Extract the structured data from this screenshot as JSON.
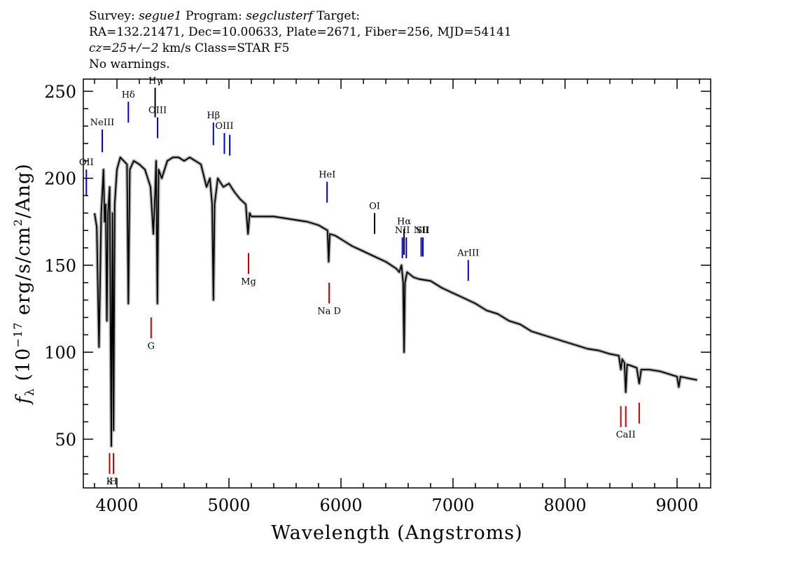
{
  "header": {
    "line1_a": "Survey: ",
    "line1_survey": "segue1",
    "line1_b": " Program: ",
    "line1_program": "segclusterf",
    "line1_c": " Target:",
    "line2": "RA=132.21471, Dec=10.00633, Plate=2671, Fiber=256, MJD=54141",
    "line3_cz": "cz=25+/−2",
    "line3_rest": " km/s Class=STAR F5",
    "line4": "No warnings."
  },
  "chart_data": {
    "type": "line",
    "xlabel": "Wavelength (Angstroms)",
    "ylabel_parts": {
      "f": "f",
      "sub": "λ",
      "a": " (10",
      "exp1": "−17",
      "b": " erg/s/cm",
      "exp2": "2",
      "c": "/Ang)"
    },
    "xlim": [
      3700,
      9300
    ],
    "ylim": [
      22,
      257
    ],
    "x_ticks": [
      4000,
      5000,
      6000,
      7000,
      8000,
      9000
    ],
    "y_ticks": [
      50,
      100,
      150,
      200,
      250
    ],
    "series": [
      {
        "points": [
          [
            3800,
            180
          ],
          [
            3820,
            172
          ],
          [
            3840,
            103
          ],
          [
            3860,
            180
          ],
          [
            3880,
            205
          ],
          [
            3890,
            175
          ],
          [
            3900,
            185
          ],
          [
            3910,
            118
          ],
          [
            3920,
            180
          ],
          [
            3935,
            195
          ],
          [
            3950,
            46
          ],
          [
            3960,
            180
          ],
          [
            3970,
            55
          ],
          [
            3980,
            185
          ],
          [
            4000,
            205
          ],
          [
            4030,
            212
          ],
          [
            4060,
            210
          ],
          [
            4090,
            208
          ],
          [
            4102,
            128
          ],
          [
            4115,
            205
          ],
          [
            4150,
            210
          ],
          [
            4200,
            208
          ],
          [
            4250,
            205
          ],
          [
            4300,
            195
          ],
          [
            4325,
            168
          ],
          [
            4340,
            190
          ],
          [
            4350,
            210
          ],
          [
            4361,
            128
          ],
          [
            4372,
            205
          ],
          [
            4400,
            200
          ],
          [
            4450,
            210
          ],
          [
            4500,
            212
          ],
          [
            4550,
            212
          ],
          [
            4600,
            210
          ],
          [
            4650,
            212
          ],
          [
            4700,
            210
          ],
          [
            4750,
            208
          ],
          [
            4800,
            195
          ],
          [
            4830,
            200
          ],
          [
            4850,
            185
          ],
          [
            4861,
            130
          ],
          [
            4872,
            185
          ],
          [
            4900,
            200
          ],
          [
            4950,
            195
          ],
          [
            5000,
            197
          ],
          [
            5050,
            192
          ],
          [
            5100,
            188
          ],
          [
            5150,
            185
          ],
          [
            5170,
            168
          ],
          [
            5185,
            180
          ],
          [
            5200,
            178
          ],
          [
            5300,
            178
          ],
          [
            5400,
            178
          ],
          [
            5500,
            177
          ],
          [
            5600,
            176
          ],
          [
            5700,
            175
          ],
          [
            5800,
            173
          ],
          [
            5880,
            170
          ],
          [
            5890,
            152
          ],
          [
            5900,
            168
          ],
          [
            5950,
            167
          ],
          [
            6000,
            165
          ],
          [
            6100,
            161
          ],
          [
            6200,
            158
          ],
          [
            6300,
            155
          ],
          [
            6400,
            152
          ],
          [
            6495,
            148
          ],
          [
            6520,
            146
          ],
          [
            6540,
            150
          ],
          [
            6555,
            140
          ],
          [
            6563,
            100
          ],
          [
            6571,
            140
          ],
          [
            6590,
            146
          ],
          [
            6650,
            143
          ],
          [
            6700,
            142
          ],
          [
            6800,
            141
          ],
          [
            6900,
            137
          ],
          [
            7000,
            134
          ],
          [
            7100,
            131
          ],
          [
            7200,
            128
          ],
          [
            7300,
            124
          ],
          [
            7400,
            122
          ],
          [
            7500,
            118
          ],
          [
            7600,
            116
          ],
          [
            7700,
            112
          ],
          [
            7800,
            110
          ],
          [
            7900,
            108
          ],
          [
            8000,
            106
          ],
          [
            8100,
            104
          ],
          [
            8200,
            102
          ],
          [
            8300,
            101
          ],
          [
            8400,
            99
          ],
          [
            8480,
            98
          ],
          [
            8498,
            90
          ],
          [
            8510,
            96
          ],
          [
            8530,
            94
          ],
          [
            8542,
            77
          ],
          [
            8554,
            93
          ],
          [
            8600,
            92
          ],
          [
            8640,
            91
          ],
          [
            8662,
            82
          ],
          [
            8680,
            90
          ],
          [
            8750,
            90
          ],
          [
            8850,
            89
          ],
          [
            8950,
            87
          ],
          [
            9000,
            86
          ],
          [
            9015,
            80
          ],
          [
            9030,
            86
          ],
          [
            9100,
            85
          ],
          [
            9180,
            84
          ]
        ]
      }
    ],
    "emission_lines": [
      {
        "label": "OII",
        "wave": 3727,
        "y": [
          190,
          205
        ],
        "color": "#0000cc"
      },
      {
        "label": "NeIII",
        "wave": 3869,
        "y": [
          215,
          228
        ],
        "color": "#0000cc"
      },
      {
        "label": "Hδ",
        "wave": 4102,
        "y": [
          232,
          244
        ],
        "color": "#0000cc"
      },
      {
        "label": "Hγ",
        "wave": 4341,
        "y": [
          235,
          252
        ],
        "color": "#000000"
      },
      {
        "label": "OIII",
        "wave": 4363,
        "y": [
          223,
          235
        ],
        "color": "#0000cc"
      },
      {
        "label": "Hβ",
        "wave": 4861,
        "y": [
          219,
          232
        ],
        "color": "#0000cc"
      },
      {
        "label": "OIII",
        "wave": 4959,
        "y": [
          214,
          226
        ],
        "color": "#0000cc"
      },
      {
        "label": "",
        "wave": 5007,
        "y": [
          213,
          225
        ],
        "color": "#0000cc"
      },
      {
        "label": "HeI",
        "wave": 5876,
        "y": [
          186,
          198
        ],
        "color": "#0000cc"
      },
      {
        "label": "OI",
        "wave": 6300,
        "y": [
          168,
          180
        ],
        "color": "#000000"
      },
      {
        "label": "NII",
        "wave": 6548,
        "y": [
          154,
          166
        ],
        "color": "#0000cc"
      },
      {
        "label": "Hα",
        "wave": 6563,
        "y": [
          156,
          171
        ],
        "color": "#000000"
      },
      {
        "label": "",
        "wave": 6583,
        "y": [
          154,
          166
        ],
        "color": "#0000cc"
      },
      {
        "label": "NII",
        "wave": 6716,
        "y": [
          155,
          166
        ],
        "color": "#0000cc"
      },
      {
        "label": "SII",
        "wave": 6731,
        "y": [
          155,
          166
        ],
        "color": "#0000cc"
      },
      {
        "label": "ArIII",
        "wave": 7136,
        "y": [
          141,
          153
        ],
        "color": "#0000cc"
      }
    ],
    "absorption_lines": [
      {
        "label": "K",
        "wave": 3934,
        "y": [
          30,
          42
        ],
        "color": "#cc0000"
      },
      {
        "label": "H",
        "wave": 3969,
        "y": [
          30,
          42
        ],
        "color": "#cc0000"
      },
      {
        "label": "G",
        "wave": 4305,
        "y": [
          108,
          120
        ],
        "color": "#cc0000"
      },
      {
        "label": "Mg",
        "wave": 5175,
        "y": [
          145,
          157
        ],
        "color": "#cc0000"
      },
      {
        "label": "Na D",
        "wave": 5894,
        "y": [
          128,
          140
        ],
        "color": "#cc0000"
      },
      {
        "label": "",
        "wave": 8498,
        "y": [
          57,
          69
        ],
        "color": "#cc0000"
      },
      {
        "label": "CaII",
        "wave": 8542,
        "y": [
          57,
          69
        ],
        "color": "#cc0000"
      },
      {
        "label": "",
        "wave": 8662,
        "y": [
          59,
          71
        ],
        "color": "#cc0000"
      }
    ]
  }
}
